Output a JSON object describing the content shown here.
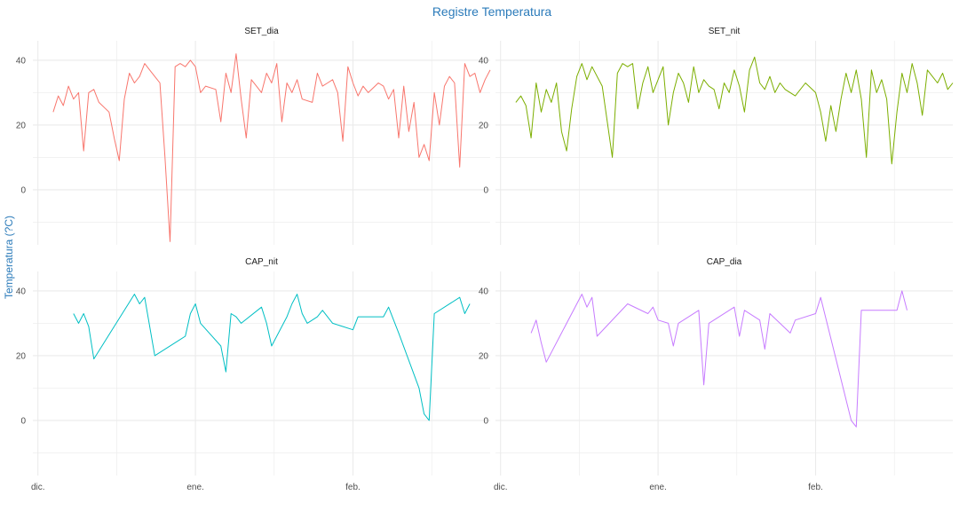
{
  "chart_data": {
    "type": "line",
    "title": "Registre Temperatura",
    "ylabel": "Temperatura (?C)",
    "xlabel": "",
    "colors": {
      "title": "#2B7BBA",
      "ylabel": "#2B7BBA",
      "grid": "#EBEBEB"
    },
    "x_range": [
      "2018-11-30",
      "2019-02-28"
    ],
    "y_range": [
      -17,
      46
    ],
    "x_ticks": [
      {
        "date": "2018-12-01",
        "label": "dic."
      },
      {
        "date": "2019-01-01",
        "label": "ene."
      },
      {
        "date": "2019-02-01",
        "label": "feb."
      }
    ],
    "y_ticks": [
      0,
      20,
      40
    ],
    "grid": true,
    "legend": "none",
    "panels": [
      {
        "name": "SET_dia",
        "color": "#F8766D",
        "points": [
          [
            "2018-12-04",
            24
          ],
          [
            "2018-12-05",
            29
          ],
          [
            "2018-12-06",
            26
          ],
          [
            "2018-12-07",
            32
          ],
          [
            "2018-12-08",
            28
          ],
          [
            "2018-12-09",
            30
          ],
          [
            "2018-12-10",
            12
          ],
          [
            "2018-12-11",
            30
          ],
          [
            "2018-12-12",
            31
          ],
          [
            "2018-12-13",
            27
          ],
          [
            "2018-12-15",
            24
          ],
          [
            "2018-12-16",
            16
          ],
          [
            "2018-12-17",
            9
          ],
          [
            "2018-12-18",
            28
          ],
          [
            "2018-12-19",
            36
          ],
          [
            "2018-12-20",
            33
          ],
          [
            "2018-12-21",
            35
          ],
          [
            "2018-12-22",
            39
          ],
          [
            "2018-12-23",
            37
          ],
          [
            "2018-12-24",
            35
          ],
          [
            "2018-12-25",
            33
          ],
          [
            "2018-12-26",
            10
          ],
          [
            "2018-12-27",
            -16
          ],
          [
            "2018-12-28",
            38
          ],
          [
            "2018-12-29",
            39
          ],
          [
            "2018-12-30",
            38
          ],
          [
            "2018-12-31",
            40
          ],
          [
            "2019-01-01",
            38
          ],
          [
            "2019-01-02",
            30
          ],
          [
            "2019-01-03",
            32
          ],
          [
            "2019-01-05",
            31
          ],
          [
            "2019-01-06",
            21
          ],
          [
            "2019-01-07",
            36
          ],
          [
            "2019-01-08",
            30
          ],
          [
            "2019-01-09",
            42
          ],
          [
            "2019-01-10",
            28
          ],
          [
            "2019-01-11",
            16
          ],
          [
            "2019-01-12",
            34
          ],
          [
            "2019-01-13",
            32
          ],
          [
            "2019-01-14",
            30
          ],
          [
            "2019-01-15",
            36
          ],
          [
            "2019-01-16",
            33
          ],
          [
            "2019-01-17",
            39
          ],
          [
            "2019-01-18",
            21
          ],
          [
            "2019-01-19",
            33
          ],
          [
            "2019-01-20",
            30
          ],
          [
            "2019-01-21",
            34
          ],
          [
            "2019-01-22",
            28
          ],
          [
            "2019-01-24",
            27
          ],
          [
            "2019-01-25",
            36
          ],
          [
            "2019-01-26",
            32
          ],
          [
            "2019-01-27",
            33
          ],
          [
            "2019-01-28",
            34
          ],
          [
            "2019-01-29",
            30
          ],
          [
            "2019-01-30",
            15
          ],
          [
            "2019-01-31",
            38
          ],
          [
            "2019-02-01",
            33
          ],
          [
            "2019-02-02",
            29
          ],
          [
            "2019-02-03",
            32
          ],
          [
            "2019-02-04",
            30
          ],
          [
            "2019-02-06",
            33
          ],
          [
            "2019-02-07",
            32
          ],
          [
            "2019-02-08",
            28
          ],
          [
            "2019-02-09",
            31
          ],
          [
            "2019-02-10",
            16
          ],
          [
            "2019-02-11",
            32
          ],
          [
            "2019-02-12",
            18
          ],
          [
            "2019-02-13",
            27
          ],
          [
            "2019-02-14",
            10
          ],
          [
            "2019-02-15",
            14
          ],
          [
            "2019-02-16",
            9
          ],
          [
            "2019-02-17",
            30
          ],
          [
            "2019-02-18",
            20
          ],
          [
            "2019-02-19",
            32
          ],
          [
            "2019-02-20",
            35
          ],
          [
            "2019-02-21",
            33
          ],
          [
            "2019-02-22",
            7
          ],
          [
            "2019-02-23",
            39
          ],
          [
            "2019-02-24",
            35
          ],
          [
            "2019-02-25",
            36
          ],
          [
            "2019-02-26",
            30
          ],
          [
            "2019-02-27",
            34
          ],
          [
            "2019-02-28",
            37
          ]
        ]
      },
      {
        "name": "SET_nit",
        "color": "#7CAE00",
        "points": [
          [
            "2018-12-04",
            27
          ],
          [
            "2018-12-05",
            29
          ],
          [
            "2018-12-06",
            26
          ],
          [
            "2018-12-07",
            16
          ],
          [
            "2018-12-08",
            33
          ],
          [
            "2018-12-09",
            24
          ],
          [
            "2018-12-10",
            31
          ],
          [
            "2018-12-11",
            27
          ],
          [
            "2018-12-12",
            33
          ],
          [
            "2018-12-13",
            18
          ],
          [
            "2018-12-14",
            12
          ],
          [
            "2018-12-15",
            25
          ],
          [
            "2018-12-16",
            35
          ],
          [
            "2018-12-17",
            39
          ],
          [
            "2018-12-18",
            34
          ],
          [
            "2018-12-19",
            38
          ],
          [
            "2018-12-21",
            32
          ],
          [
            "2018-12-23",
            10
          ],
          [
            "2018-12-24",
            36
          ],
          [
            "2018-12-25",
            39
          ],
          [
            "2018-12-26",
            38
          ],
          [
            "2018-12-27",
            39
          ],
          [
            "2018-12-28",
            25
          ],
          [
            "2018-12-29",
            33
          ],
          [
            "2018-12-30",
            38
          ],
          [
            "2018-12-31",
            30
          ],
          [
            "2019-01-01",
            34
          ],
          [
            "2019-01-02",
            38
          ],
          [
            "2019-01-03",
            20
          ],
          [
            "2019-01-04",
            30
          ],
          [
            "2019-01-05",
            36
          ],
          [
            "2019-01-06",
            33
          ],
          [
            "2019-01-07",
            27
          ],
          [
            "2019-01-08",
            38
          ],
          [
            "2019-01-09",
            30
          ],
          [
            "2019-01-10",
            34
          ],
          [
            "2019-01-11",
            32
          ],
          [
            "2019-01-12",
            31
          ],
          [
            "2019-01-13",
            25
          ],
          [
            "2019-01-14",
            33
          ],
          [
            "2019-01-15",
            30
          ],
          [
            "2019-01-16",
            37
          ],
          [
            "2019-01-17",
            32
          ],
          [
            "2019-01-18",
            24
          ],
          [
            "2019-01-19",
            37
          ],
          [
            "2019-01-20",
            41
          ],
          [
            "2019-01-21",
            33
          ],
          [
            "2019-01-22",
            31
          ],
          [
            "2019-01-23",
            35
          ],
          [
            "2019-01-24",
            30
          ],
          [
            "2019-01-25",
            33
          ],
          [
            "2019-01-26",
            31
          ],
          [
            "2019-01-28",
            29
          ],
          [
            "2019-01-30",
            33
          ],
          [
            "2019-02-01",
            30
          ],
          [
            "2019-02-02",
            24
          ],
          [
            "2019-02-03",
            15
          ],
          [
            "2019-02-04",
            26
          ],
          [
            "2019-02-05",
            18
          ],
          [
            "2019-02-06",
            28
          ],
          [
            "2019-02-07",
            36
          ],
          [
            "2019-02-08",
            30
          ],
          [
            "2019-02-09",
            37
          ],
          [
            "2019-02-10",
            28
          ],
          [
            "2019-02-11",
            10
          ],
          [
            "2019-02-12",
            37
          ],
          [
            "2019-02-13",
            30
          ],
          [
            "2019-02-14",
            34
          ],
          [
            "2019-02-15",
            28
          ],
          [
            "2019-02-16",
            8
          ],
          [
            "2019-02-17",
            24
          ],
          [
            "2019-02-18",
            36
          ],
          [
            "2019-02-19",
            30
          ],
          [
            "2019-02-20",
            39
          ],
          [
            "2019-02-21",
            33
          ],
          [
            "2019-02-22",
            23
          ],
          [
            "2019-02-23",
            37
          ],
          [
            "2019-02-24",
            35
          ],
          [
            "2019-02-25",
            33
          ],
          [
            "2019-02-26",
            36
          ],
          [
            "2019-02-27",
            31
          ],
          [
            "2019-02-28",
            33
          ]
        ]
      },
      {
        "name": "CAP_nit",
        "color": "#00BFC4",
        "points": [
          [
            "2018-12-08",
            33
          ],
          [
            "2018-12-09",
            30
          ],
          [
            "2018-12-10",
            33
          ],
          [
            "2018-12-11",
            29
          ],
          [
            "2018-12-12",
            19
          ],
          [
            "2018-12-20",
            39
          ],
          [
            "2018-12-21",
            36
          ],
          [
            "2018-12-22",
            38
          ],
          [
            "2018-12-24",
            20
          ],
          [
            "2018-12-30",
            26
          ],
          [
            "2018-12-31",
            33
          ],
          [
            "2019-01-01",
            36
          ],
          [
            "2019-01-02",
            30
          ],
          [
            "2019-01-06",
            23
          ],
          [
            "2019-01-07",
            15
          ],
          [
            "2019-01-08",
            33
          ],
          [
            "2019-01-09",
            32
          ],
          [
            "2019-01-10",
            30
          ],
          [
            "2019-01-14",
            35
          ],
          [
            "2019-01-15",
            30
          ],
          [
            "2019-01-16",
            23
          ],
          [
            "2019-01-19",
            32
          ],
          [
            "2019-01-20",
            36
          ],
          [
            "2019-01-21",
            39
          ],
          [
            "2019-01-22",
            33
          ],
          [
            "2019-01-23",
            30
          ],
          [
            "2019-01-25",
            32
          ],
          [
            "2019-01-26",
            34
          ],
          [
            "2019-01-28",
            30
          ],
          [
            "2019-02-01",
            28
          ],
          [
            "2019-02-02",
            32
          ],
          [
            "2019-02-07",
            32
          ],
          [
            "2019-02-08",
            35
          ],
          [
            "2019-02-09",
            31
          ],
          [
            "2019-02-10",
            27
          ],
          [
            "2019-02-14",
            10
          ],
          [
            "2019-02-15",
            2
          ],
          [
            "2019-02-16",
            0
          ],
          [
            "2019-02-17",
            33
          ],
          [
            "2019-02-22",
            38
          ],
          [
            "2019-02-23",
            33
          ],
          [
            "2019-02-24",
            36
          ]
        ]
      },
      {
        "name": "CAP_dia",
        "color": "#C77CFF",
        "points": [
          [
            "2018-12-07",
            27
          ],
          [
            "2018-12-08",
            31
          ],
          [
            "2018-12-09",
            24
          ],
          [
            "2018-12-10",
            18
          ],
          [
            "2018-12-17",
            39
          ],
          [
            "2018-12-18",
            35
          ],
          [
            "2018-12-19",
            38
          ],
          [
            "2018-12-20",
            26
          ],
          [
            "2018-12-26",
            36
          ],
          [
            "2018-12-30",
            33
          ],
          [
            "2018-12-31",
            35
          ],
          [
            "2019-01-01",
            31
          ],
          [
            "2019-01-03",
            30
          ],
          [
            "2019-01-04",
            23
          ],
          [
            "2019-01-05",
            30
          ],
          [
            "2019-01-09",
            34
          ],
          [
            "2019-01-10",
            11
          ],
          [
            "2019-01-11",
            30
          ],
          [
            "2019-01-16",
            35
          ],
          [
            "2019-01-17",
            26
          ],
          [
            "2019-01-18",
            34
          ],
          [
            "2019-01-21",
            31
          ],
          [
            "2019-01-22",
            22
          ],
          [
            "2019-01-23",
            33
          ],
          [
            "2019-01-27",
            27
          ],
          [
            "2019-01-28",
            31
          ],
          [
            "2019-02-01",
            33
          ],
          [
            "2019-02-02",
            38
          ],
          [
            "2019-02-08",
            0
          ],
          [
            "2019-02-09",
            -2
          ],
          [
            "2019-02-10",
            34
          ],
          [
            "2019-02-17",
            34
          ],
          [
            "2019-02-18",
            40
          ],
          [
            "2019-02-19",
            34
          ]
        ]
      }
    ]
  }
}
